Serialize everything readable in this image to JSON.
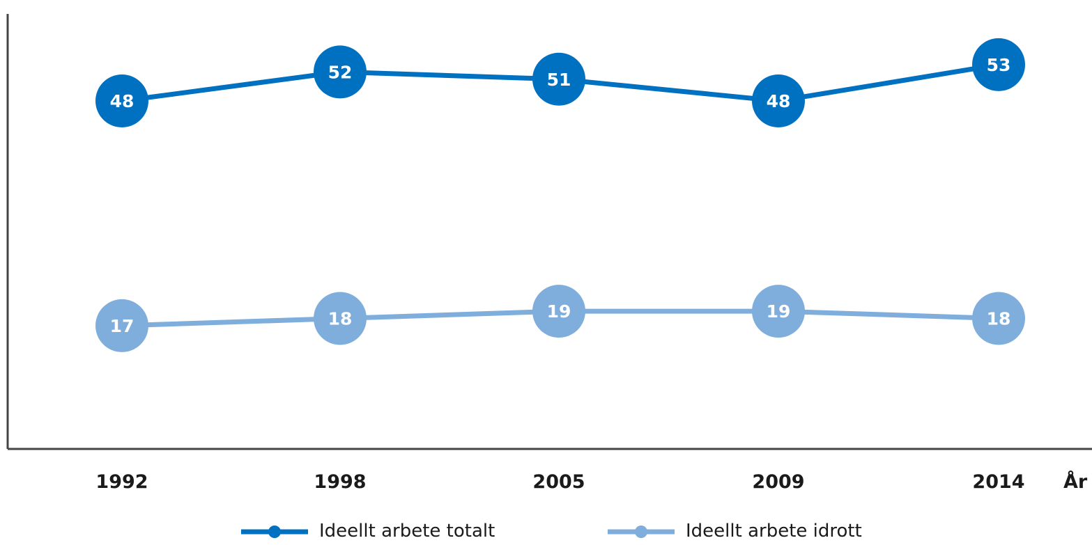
{
  "chart_data": {
    "type": "line",
    "xlabel": "År",
    "ylabel": "",
    "title": "",
    "categories": [
      "1992",
      "1998",
      "2005",
      "2009",
      "2014"
    ],
    "ylim": [
      0,
      60
    ],
    "grid": false,
    "legend_position": "bottom",
    "series": [
      {
        "name": "Ideellt arbete totalt",
        "color": "#0070c0",
        "values": [
          48,
          52,
          51,
          48,
          53
        ]
      },
      {
        "name": "Ideellt arbete idrott",
        "color": "#7faedc",
        "values": [
          17,
          18,
          19,
          19,
          18
        ]
      }
    ]
  }
}
